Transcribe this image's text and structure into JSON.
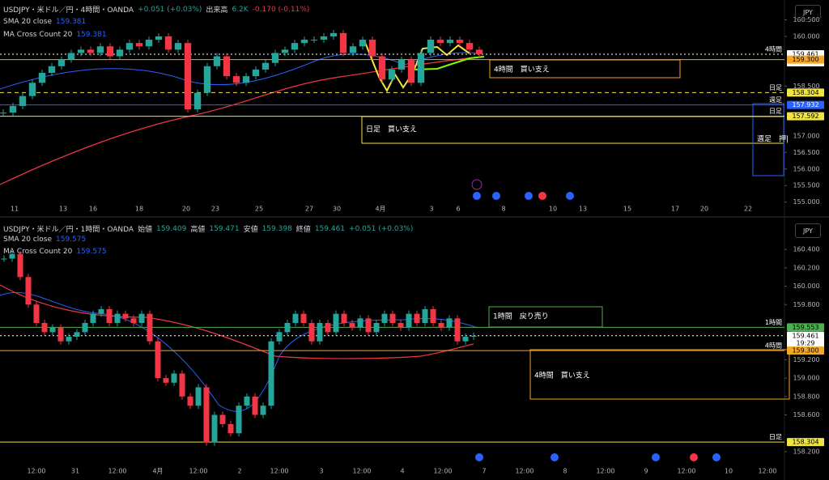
{
  "panels": [
    {
      "symbol": "USDJPY・米ドル／円・4時間・OANDA",
      "change": "+0.051 (+0.03%)",
      "volume_label": "出来高",
      "volume": "6.2K",
      "volume_change": "-0.170 (-0.11%)",
      "indicators": [
        {
          "name": "SMA 20 close",
          "value": "159.381"
        },
        {
          "name": "MA Cross Count 20",
          "value": "159.381"
        }
      ],
      "currency": "JPY",
      "ylim": [
        154.7,
        161.0
      ],
      "yticks": [
        {
          "value": 160.5,
          "label": "160.500"
        },
        {
          "value": 160,
          "label": "160.000"
        },
        {
          "value": 158.5,
          "label": "158.500"
        },
        {
          "value": 157,
          "label": "157.000"
        },
        {
          "value": 156.5,
          "label": "156.500"
        },
        {
          "value": 156,
          "label": "156.000"
        },
        {
          "value": 155.5,
          "label": "155.500"
        },
        {
          "value": 155,
          "label": "155.000"
        }
      ],
      "closes": [
        157.7,
        157.9,
        158.2,
        158.6,
        158.9,
        159.1,
        159.3,
        159.5,
        159.6,
        159.5,
        159.7,
        159.4,
        159.6,
        159.8,
        159.7,
        159.9,
        160.0,
        159.6,
        159.8,
        157.8,
        158.3,
        159.1,
        159.4,
        158.8,
        158.6,
        158.8,
        159.0,
        159.2,
        159.5,
        159.6,
        159.8,
        159.9,
        159.9,
        160.0,
        160.1,
        159.5,
        159.7,
        159.9,
        159.4,
        158.7,
        159.0,
        159.3,
        158.6,
        159.5,
        159.9,
        159.8,
        159.9,
        159.8,
        159.6,
        159.461
      ],
      "levels": [
        {
          "label": "4時間",
          "value": 159.461,
          "time": "03:19:29",
          "color": "#ffffff"
        },
        {
          "value": 159.3,
          "value_label": "159.300",
          "color": "#f5a623"
        },
        {
          "label": "日足",
          "value": 158.304,
          "color": "#f0e442"
        },
        {
          "label": "週足",
          "value": 157.932,
          "color": "#2962ff"
        },
        {
          "label": "日足",
          "value": 157.592,
          "color": "#f0e442"
        }
      ],
      "annotations": [
        "4時間　買い支え",
        "日足　買い支え",
        "週足　押|"
      ],
      "x_labels": [
        "11",
        "13",
        "16",
        "18",
        "20",
        "23",
        "25",
        "27",
        "30",
        "4月",
        "3",
        "6",
        "8",
        "10",
        "13",
        "15",
        "17",
        "20",
        "22"
      ]
    },
    {
      "symbol": "USDJPY・米ドル／円・1時間・OANDA",
      "ohlc": [
        {
          "label": "始値",
          "value": "159.409"
        },
        {
          "label": "高値",
          "value": "159.471"
        },
        {
          "label": "安値",
          "value": "159.398"
        },
        {
          "label": "終値",
          "value": "159.461"
        }
      ],
      "change": "+0.051 (+0.03%)",
      "indicators": [
        {
          "name": "SMA 20 close",
          "value": "159.575"
        },
        {
          "name": "MA Cross Count 20",
          "value": "159.575"
        }
      ],
      "currency": "JPY",
      "ylim": [
        158.05,
        160.56
      ],
      "yticks": [
        {
          "value": 160.4,
          "label": "160.400"
        },
        {
          "value": 160.2,
          "label": "160.200"
        },
        {
          "value": 160,
          "label": "160.000"
        },
        {
          "value": 159.8,
          "label": "159.800"
        },
        {
          "value": 159.2,
          "label": "159.200"
        },
        {
          "value": 159,
          "label": "159.000"
        },
        {
          "value": 158.8,
          "label": "158.800"
        },
        {
          "value": 158.6,
          "label": "158.600"
        },
        {
          "value": 158.2,
          "label": "158.200"
        }
      ],
      "closes": [
        160.3,
        160.35,
        160.1,
        159.8,
        159.6,
        159.5,
        159.55,
        159.4,
        159.45,
        159.5,
        159.6,
        159.7,
        159.75,
        159.6,
        159.7,
        159.65,
        159.6,
        159.7,
        159.4,
        159.0,
        158.95,
        159.05,
        158.8,
        158.7,
        158.9,
        158.3,
        158.6,
        158.5,
        158.4,
        158.7,
        158.8,
        158.6,
        158.7,
        159.4,
        159.5,
        159.6,
        159.7,
        159.6,
        159.4,
        159.6,
        159.5,
        159.7,
        159.6,
        159.55,
        159.65,
        159.5,
        159.6,
        159.7,
        159.6,
        159.55,
        159.7,
        159.6,
        159.75,
        159.6,
        159.55,
        159.65,
        159.4,
        159.45,
        159.461
      ],
      "levels": [
        {
          "label": "1時間",
          "value": 159.553,
          "color": "#4caf50"
        },
        {
          "value": 159.461,
          "time": "19:29",
          "color": "#ffffff"
        },
        {
          "label": "4時間",
          "value": 159.3,
          "value_label": "159.300",
          "color": "#f5a623"
        },
        {
          "label": "日足",
          "value": 158.304,
          "color": "#f0e442"
        }
      ],
      "annotations": [
        "1時間　戻り売り",
        "4時間　買い支え"
      ],
      "x_labels": [
        "12:00",
        "31",
        "12:00",
        "4月",
        "12:00",
        "2",
        "12:00",
        "3",
        "12:00",
        "4",
        "12:00",
        "7",
        "12:00",
        "8",
        "12:00",
        "9",
        "12:00",
        "10",
        "12:00"
      ]
    }
  ]
}
